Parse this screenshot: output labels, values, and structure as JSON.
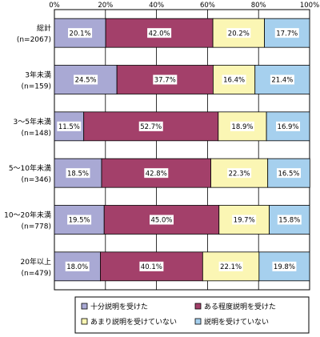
{
  "chart_data": {
    "type": "bar",
    "orientation": "horizontal",
    "stacked": true,
    "percent": true,
    "xlim": [
      0,
      100
    ],
    "x_ticks": [
      "0%",
      "20%",
      "40%",
      "60%",
      "80%",
      "100%"
    ],
    "grid": true,
    "legend_position": "bottom",
    "categories": [
      {
        "name": "総計",
        "n": "(n=2067)"
      },
      {
        "name": "3年未満",
        "n": "(n=159)"
      },
      {
        "name": "3～5年未満",
        "n": "(n=148)"
      },
      {
        "name": "5～10年未満",
        "n": "(n=346)"
      },
      {
        "name": "10～20年未満",
        "n": "(n=778)"
      },
      {
        "name": "20年以上",
        "n": "(n=479)"
      }
    ],
    "series": [
      {
        "name": "十分説明を受けた",
        "color": "#a9a9d4",
        "values": [
          20.1,
          24.5,
          11.5,
          18.5,
          19.5,
          18.0
        ]
      },
      {
        "name": "ある程度説明を受けた",
        "color": "#a3406a",
        "values": [
          42.0,
          37.7,
          52.7,
          42.8,
          45.0,
          40.1
        ]
      },
      {
        "name": "あまり説明を受けていない",
        "color": "#fbf6b4",
        "values": [
          20.2,
          16.4,
          18.9,
          22.3,
          19.7,
          22.1
        ]
      },
      {
        "name": "説明を受けていない",
        "color": "#a6d0ee",
        "values": [
          17.7,
          21.4,
          16.9,
          16.5,
          15.8,
          19.8
        ]
      }
    ]
  }
}
